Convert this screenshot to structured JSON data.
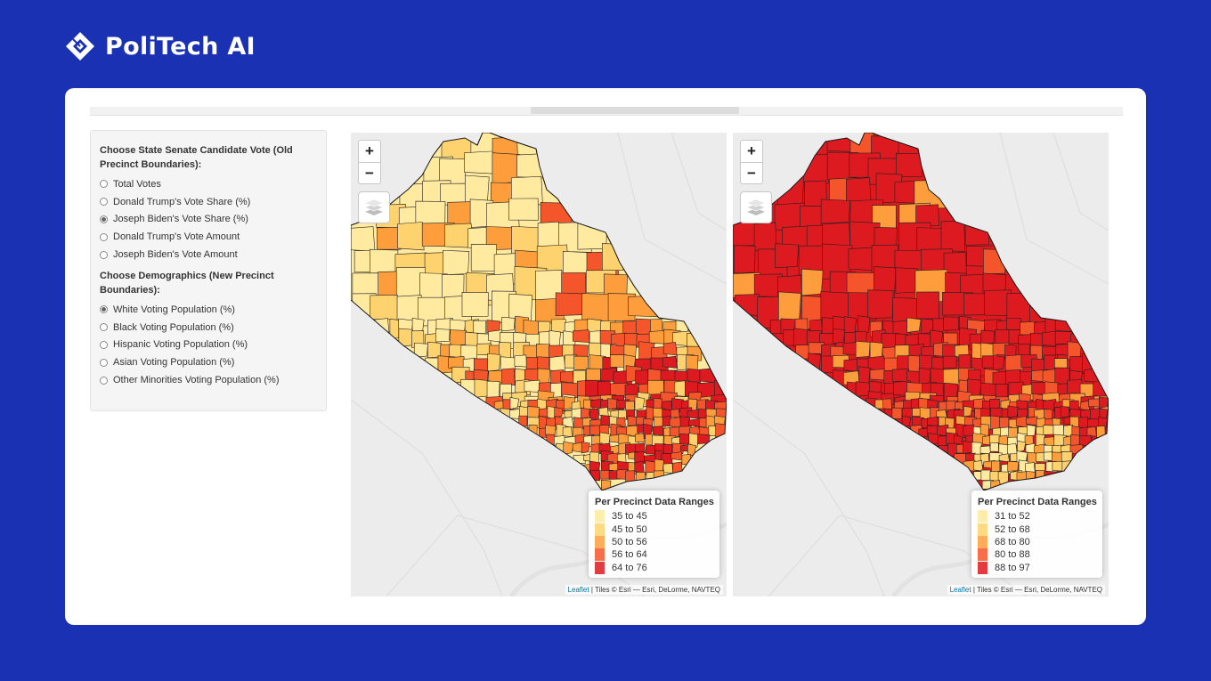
{
  "brand": {
    "name": "PoliTech AI"
  },
  "controls": {
    "senate_group": {
      "title": "Choose State Senate Candidate Vote (Old Precinct Boundaries):",
      "options": [
        {
          "label": "Total Votes",
          "checked": false
        },
        {
          "label": "Donald Trump's Vote Share (%)",
          "checked": false
        },
        {
          "label": "Joseph Biden's Vote Share (%)",
          "checked": true
        },
        {
          "label": "Donald Trump's Vote Amount",
          "checked": false
        },
        {
          "label": "Joseph Biden's Vote Amount",
          "checked": false
        }
      ]
    },
    "demo_group": {
      "title": "Choose Demographics (New Precinct Boundaries):",
      "options": [
        {
          "label": "White Voting Population (%)",
          "checked": true
        },
        {
          "label": "Black Voting Population (%)",
          "checked": false
        },
        {
          "label": "Hispanic Voting Population (%)",
          "checked": false
        },
        {
          "label": "Asian Voting Population (%)",
          "checked": false
        },
        {
          "label": "Other Minorities Voting Population (%)",
          "checked": false
        }
      ]
    }
  },
  "maps": {
    "left": {
      "zoom_in": "+",
      "zoom_out": "−",
      "legend": {
        "title": "Per Precinct Data Ranges",
        "items": [
          {
            "label": "35 to 45",
            "color": "#ffeaa0"
          },
          {
            "label": "45 to 50",
            "color": "#fed36f"
          },
          {
            "label": "50 to 56",
            "color": "#fd9d3c"
          },
          {
            "label": "56 to 64",
            "color": "#f5552a"
          },
          {
            "label": "64 to 76",
            "color": "#dd1a20"
          }
        ]
      },
      "attribution": {
        "link": "Leaflet",
        "text": " | Tiles © Esri — Esri, DeLorme, NAVTEQ"
      }
    },
    "right": {
      "zoom_in": "+",
      "zoom_out": "−",
      "legend": {
        "title": "Per Precinct Data Ranges",
        "items": [
          {
            "label": "31 to 52",
            "color": "#ffeaa0"
          },
          {
            "label": "52 to 68",
            "color": "#fed36f"
          },
          {
            "label": "68 to 80",
            "color": "#fd9d3c"
          },
          {
            "label": "80 to 88",
            "color": "#f5552a"
          },
          {
            "label": "88 to 97",
            "color": "#dd1a20"
          }
        ]
      },
      "attribution": {
        "link": "Leaflet",
        "text": " | Tiles © Esri — Esri, DeLorme, NAVTEQ"
      }
    }
  },
  "colors": {
    "background": "#1b31b3",
    "card": "#ffffff",
    "precinct_outline": "#1a1a1a"
  }
}
